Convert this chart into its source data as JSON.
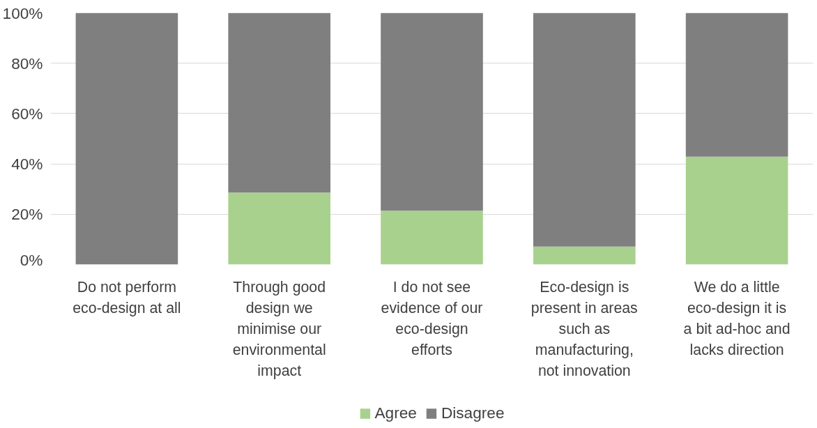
{
  "chart_data": {
    "type": "bar",
    "stacked": true,
    "categories": [
      "Do not perform eco-design at all",
      "Through good design we minimise our environmental impact",
      "I do not see evidence of our eco-design efforts",
      "Eco-design is present in areas such as manufacturing, not innovation",
      "We do a little eco-design it is a bit ad-hoc and lacks direction"
    ],
    "series": [
      {
        "name": "Agree",
        "color": "#a9d18e",
        "values": [
          0,
          28.6,
          21.4,
          7.1,
          42.9
        ]
      },
      {
        "name": "Disagree",
        "color": "#7f7f7f",
        "values": [
          100,
          71.4,
          78.6,
          92.9,
          57.1
        ]
      }
    ],
    "ylim": [
      0,
      100
    ],
    "yticks": [
      {
        "value": 0,
        "label": "0%"
      },
      {
        "value": 20,
        "label": "20%"
      },
      {
        "value": 40,
        "label": "40%"
      },
      {
        "value": 60,
        "label": "60%"
      },
      {
        "value": 80,
        "label": "80%"
      },
      {
        "value": 100,
        "label": "100%"
      }
    ],
    "grid": "y",
    "legend": "bottom"
  }
}
